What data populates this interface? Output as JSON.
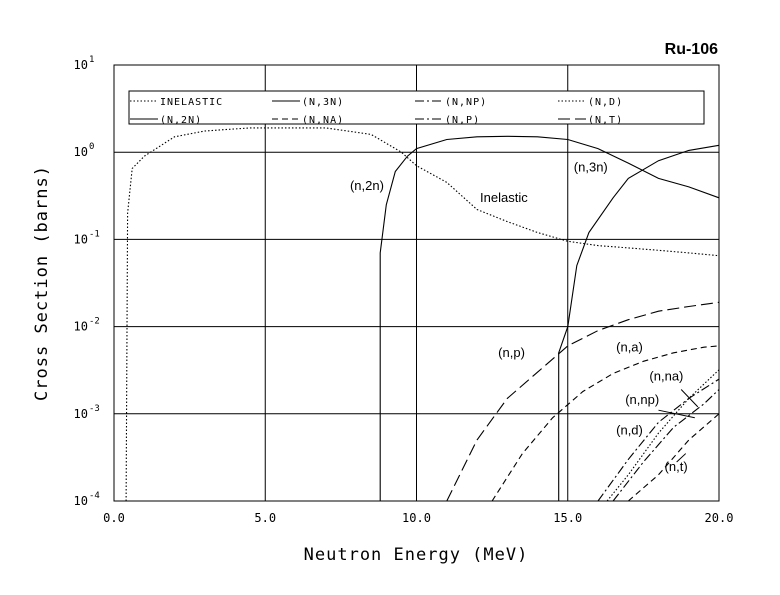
{
  "chart_data": {
    "type": "line",
    "title": "Ru-106",
    "xlabel": "Neutron Energy (MeV)",
    "ylabel": "Cross Section (barns)",
    "xlim": [
      0,
      20
    ],
    "ylim": [
      0.0001,
      10
    ],
    "yscale": "log",
    "grid": true,
    "xticks": [
      "0.0",
      "5.0",
      "10.0",
      "15.0",
      "20.0"
    ],
    "yticks": [
      {
        "value": 0.0001,
        "base": "10",
        "exp": "-4"
      },
      {
        "value": 0.001,
        "base": "10",
        "exp": "-3"
      },
      {
        "value": 0.01,
        "base": "10",
        "exp": "-2"
      },
      {
        "value": 0.1,
        "base": "10",
        "exp": "-1"
      },
      {
        "value": 1,
        "base": "10",
        "exp": "0"
      },
      {
        "value": 10,
        "base": "10",
        "exp": "1"
      }
    ],
    "legend_position": "top",
    "legend": [
      {
        "label": "INELASTIC",
        "dash": "dotted"
      },
      {
        "label": "(N,3N)",
        "dash": "solid"
      },
      {
        "label": "(N,NP)",
        "dash": "dashdot"
      },
      {
        "label": "(N,D)",
        "dash": "dotted"
      },
      {
        "label": "(N,2N)",
        "dash": "solid"
      },
      {
        "label": "(N,NA)",
        "dash": "dashed"
      },
      {
        "label": "(N,P)",
        "dash": "dashdot"
      },
      {
        "label": "(N,T)",
        "dash": "longdash"
      }
    ],
    "series": [
      {
        "key": "inelastic",
        "dash": "dotted",
        "points": [
          [
            0.4,
            0.0001
          ],
          [
            0.45,
            0.2
          ],
          [
            0.6,
            0.65
          ],
          [
            1,
            0.9
          ],
          [
            2,
            1.5
          ],
          [
            3,
            1.75
          ],
          [
            4.5,
            1.9
          ],
          [
            7,
            1.9
          ],
          [
            8.5,
            1.6
          ],
          [
            9.5,
            1.0
          ],
          [
            10,
            0.7
          ],
          [
            11,
            0.45
          ],
          [
            12,
            0.22
          ],
          [
            13,
            0.16
          ],
          [
            14,
            0.12
          ],
          [
            15,
            0.095
          ],
          [
            16,
            0.085
          ],
          [
            17,
            0.08
          ],
          [
            18,
            0.075
          ],
          [
            19,
            0.07
          ],
          [
            20,
            0.065
          ]
        ]
      },
      {
        "key": "n2n",
        "dash": "solid",
        "points": [
          [
            8.8,
            0.0001
          ],
          [
            8.8,
            0.07
          ],
          [
            9.0,
            0.25
          ],
          [
            9.3,
            0.6
          ],
          [
            9.7,
            0.9
          ],
          [
            10,
            1.1
          ],
          [
            11,
            1.4
          ],
          [
            12,
            1.5
          ],
          [
            13,
            1.52
          ],
          [
            14,
            1.5
          ],
          [
            15,
            1.4
          ],
          [
            16,
            1.1
          ],
          [
            17,
            0.75
          ],
          [
            18,
            0.5
          ],
          [
            19,
            0.4
          ],
          [
            20,
            0.3
          ]
        ]
      },
      {
        "key": "n3n",
        "dash": "solid",
        "points": [
          [
            14.7,
            0.0001
          ],
          [
            14.7,
            0.005
          ],
          [
            15,
            0.01
          ],
          [
            15.3,
            0.05
          ],
          [
            15.7,
            0.12
          ],
          [
            16.5,
            0.3
          ],
          [
            17,
            0.5
          ],
          [
            18,
            0.8
          ],
          [
            19,
            1.05
          ],
          [
            20,
            1.2
          ]
        ]
      },
      {
        "key": "np",
        "dash": "longdash",
        "points": [
          [
            11,
            0.0001
          ],
          [
            12,
            0.0005
          ],
          [
            13,
            0.0015
          ],
          [
            14,
            0.003
          ],
          [
            15,
            0.006
          ],
          [
            16,
            0.009
          ],
          [
            17,
            0.012
          ],
          [
            18,
            0.015
          ],
          [
            19,
            0.017
          ],
          [
            20,
            0.019
          ]
        ]
      },
      {
        "key": "na",
        "dash": "dashed",
        "points": [
          [
            12.5,
            0.0001
          ],
          [
            13.5,
            0.00035
          ],
          [
            14.5,
            0.0009
          ],
          [
            15.5,
            0.0018
          ],
          [
            16.5,
            0.0029
          ],
          [
            17.5,
            0.004
          ],
          [
            18.5,
            0.005
          ],
          [
            19.5,
            0.0058
          ],
          [
            20,
            0.006
          ]
        ]
      },
      {
        "key": "nnp",
        "dash": "dashdot",
        "points": [
          [
            16.0,
            0.0001
          ],
          [
            17,
            0.0003
          ],
          [
            18,
            0.0008
          ],
          [
            19,
            0.0015
          ],
          [
            20,
            0.0025
          ]
        ]
      },
      {
        "key": "nd",
        "dash": "dotted",
        "points": [
          [
            16.3,
            0.0001
          ],
          [
            17,
            0.0002
          ],
          [
            18,
            0.0006
          ],
          [
            19,
            0.0015
          ],
          [
            20,
            0.0032
          ]
        ]
      },
      {
        "key": "nna",
        "dash": "dashdot",
        "points": [
          [
            16.5,
            0.0001
          ],
          [
            17.5,
            0.00028
          ],
          [
            18.5,
            0.0007
          ],
          [
            19.5,
            0.0013
          ],
          [
            20,
            0.0019
          ]
        ]
      },
      {
        "key": "nt",
        "dash": "dashed",
        "points": [
          [
            17.0,
            0.0001
          ],
          [
            18,
            0.0002
          ],
          [
            19,
            0.0005
          ],
          [
            20,
            0.001
          ]
        ]
      }
    ],
    "annotations": [
      {
        "text": "(n,2n)",
        "x": 7.8,
        "y": 0.37
      },
      {
        "text": "Inelastic",
        "x": 12.1,
        "y": 0.27
      },
      {
        "text": "(n,3n)",
        "x": 15.2,
        "y": 0.6
      },
      {
        "text": "(n,p)",
        "x": 12.7,
        "y": 0.0045
      },
      {
        "text": "(n,a)",
        "x": 16.6,
        "y": 0.0052
      },
      {
        "text": "(n,na)",
        "x": 17.7,
        "y": 0.0024
      },
      {
        "text": "(n,np)",
        "x": 16.9,
        "y": 0.0013
      },
      {
        "text": "(n,d)",
        "x": 16.6,
        "y": 0.00058
      },
      {
        "text": "(n,t)",
        "x": 18.2,
        "y": 0.00022
      }
    ]
  }
}
